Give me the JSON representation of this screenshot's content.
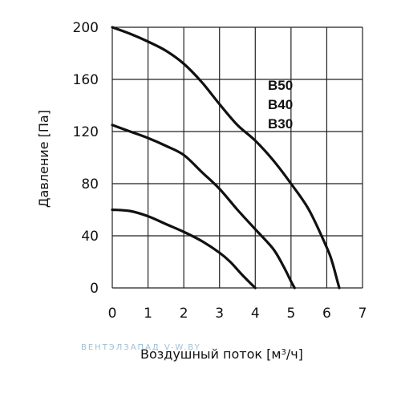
{
  "chart_data": {
    "type": "line",
    "xlabel_main": "Воздушный поток [м",
    "xlabel_sup": "3",
    "xlabel_tail": "/ч]",
    "ylabel": "Давление [Па]",
    "xlim": [
      0,
      7
    ],
    "ylim": [
      0,
      200
    ],
    "x_ticks": [
      "0",
      "1",
      "2",
      "3",
      "4",
      "5",
      "6",
      "7"
    ],
    "y_ticks": [
      "0",
      "40",
      "80",
      "120",
      "160",
      "200"
    ],
    "grid": true,
    "series": [
      {
        "name": "B50",
        "points": [
          [
            0,
            200
          ],
          [
            0.5,
            195
          ],
          [
            1,
            189
          ],
          [
            1.5,
            182
          ],
          [
            2,
            172
          ],
          [
            2.5,
            158
          ],
          [
            3,
            141
          ],
          [
            3.5,
            125
          ],
          [
            4,
            113
          ],
          [
            4.5,
            98
          ],
          [
            5,
            80
          ],
          [
            5.5,
            60
          ],
          [
            6,
            31
          ],
          [
            6.15,
            20
          ],
          [
            6.3,
            5
          ],
          [
            6.35,
            0
          ]
        ]
      },
      {
        "name": "B40",
        "points": [
          [
            0,
            125
          ],
          [
            0.5,
            120
          ],
          [
            1,
            115
          ],
          [
            1.5,
            109
          ],
          [
            2,
            102
          ],
          [
            2.5,
            89
          ],
          [
            3,
            76
          ],
          [
            3.5,
            60
          ],
          [
            4,
            45
          ],
          [
            4.5,
            30
          ],
          [
            4.8,
            16
          ],
          [
            5,
            5
          ],
          [
            5.1,
            0
          ]
        ]
      },
      {
        "name": "B30",
        "points": [
          [
            0,
            60
          ],
          [
            0.5,
            59
          ],
          [
            1,
            55
          ],
          [
            1.5,
            49
          ],
          [
            2,
            43
          ],
          [
            2.5,
            36
          ],
          [
            3,
            27
          ],
          [
            3.3,
            20
          ],
          [
            3.6,
            11
          ],
          [
            3.85,
            4
          ],
          [
            4,
            0
          ]
        ]
      }
    ],
    "watermark": "ВЕНТЭЛЗАПАД   V-W.BY"
  }
}
